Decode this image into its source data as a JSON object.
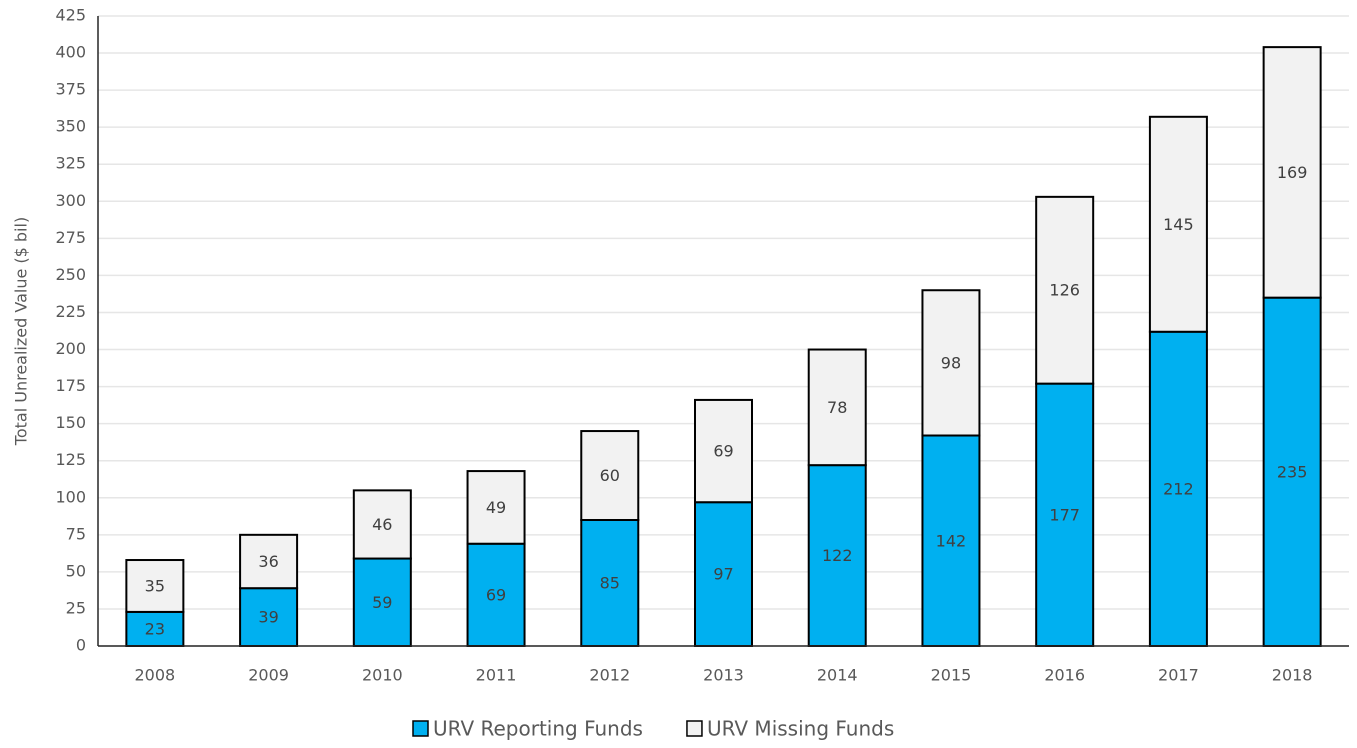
{
  "chart_data": {
    "type": "stacked_bar",
    "y_label": "Total Unrealized Value ($ bil)",
    "categories": [
      "2008",
      "2009",
      "2010",
      "2011",
      "2012",
      "2013",
      "2014",
      "2015",
      "2016",
      "2017",
      "2018"
    ],
    "series": [
      {
        "name": "URV Reporting Funds",
        "color": "#00b0f0",
        "values": [
          23,
          39,
          59,
          69,
          85,
          97,
          122,
          142,
          177,
          212,
          235
        ]
      },
      {
        "name": "URV Missing Funds",
        "color": "#f2f2f2",
        "values": [
          35,
          36,
          46,
          49,
          60,
          69,
          78,
          98,
          126,
          145,
          169
        ]
      }
    ],
    "ylim": [
      0,
      425
    ],
    "yticks": [
      0,
      25,
      50,
      75,
      100,
      125,
      150,
      175,
      200,
      225,
      250,
      275,
      300,
      325,
      350,
      375,
      400,
      425
    ],
    "grid": true,
    "legend": "bottom"
  }
}
